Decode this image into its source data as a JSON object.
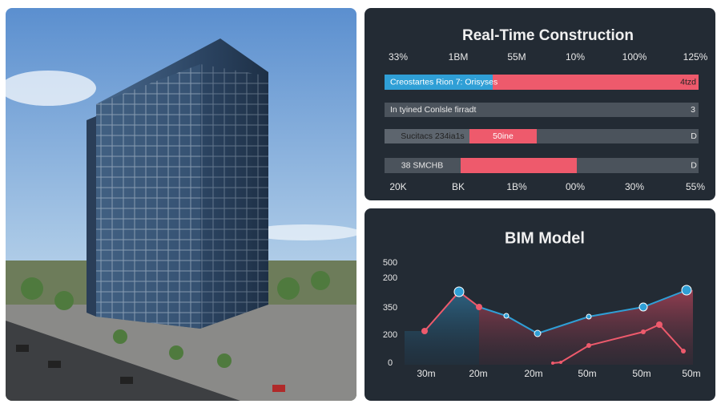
{
  "dashboard": {
    "title": "Real-Time Construction",
    "header_labels": [
      "33%",
      "1BM",
      "55M",
      "10%",
      "100%",
      "125%"
    ],
    "rows": [
      {
        "segments": [
          "Creostartes Rion 7: Orisyses",
          "4tzd"
        ]
      },
      {
        "segments": [
          "In tyined Conlsle firradt",
          "3"
        ]
      },
      {
        "segments": [
          "Sucitacs 234ia1s",
          "50ine",
          "D"
        ]
      },
      {
        "segments": [
          "38 SMCHB",
          "D"
        ]
      }
    ],
    "footer_labels": [
      "20K",
      "BK",
      "1B%",
      "00%",
      "30%",
      "55%"
    ]
  },
  "bim": {
    "title": "BIM Model",
    "y_labels": [
      "500",
      "200",
      "350",
      "200",
      "0"
    ],
    "x_labels": [
      "30m",
      "20m",
      "20m",
      "50m",
      "50m",
      "50m"
    ]
  }
}
